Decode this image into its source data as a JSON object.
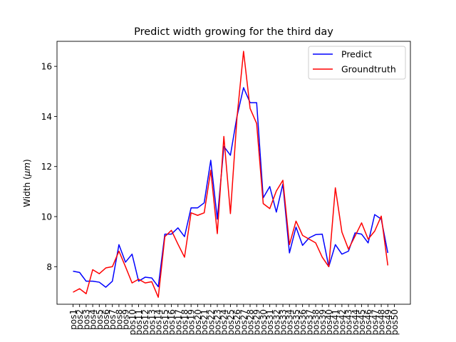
{
  "chart_data": {
    "type": "line",
    "title": "Predict width growing for the third day",
    "ylabel_main": "Width (",
    "ylabel_unit": "μm",
    "ylabel_close": ")",
    "xlabel": "",
    "ylim": [
      6.5,
      17.0
    ],
    "yticks": [
      8,
      10,
      12,
      14,
      16
    ],
    "grid": false,
    "legend_position": "top-right",
    "categories": [
      "pos1",
      "pos2",
      "pos3",
      "pos4",
      "pos5",
      "pos6",
      "pos7",
      "pos8",
      "pos9",
      "pos10",
      "pos11",
      "pos12",
      "pos13",
      "pos14",
      "pos15",
      "pos16",
      "pos17",
      "pos18",
      "pos19",
      "pos20",
      "pos21",
      "pos22",
      "pos23",
      "pos24",
      "pos25",
      "pos26",
      "pos27",
      "pos28",
      "pos29",
      "pos30",
      "pos31",
      "pos32",
      "pos33",
      "pos34",
      "pos35",
      "pos36",
      "pos37",
      "pos38",
      "pos39",
      "pos40",
      "pos41",
      "pos42",
      "pos43",
      "pos44",
      "pos45",
      "pos46",
      "pos47",
      "pos48",
      "pos49",
      "pos50"
    ],
    "series": [
      {
        "name": "Predict",
        "color": "#0000ff",
        "values": [
          7.82,
          7.77,
          7.42,
          7.42,
          7.38,
          7.18,
          7.42,
          8.88,
          8.18,
          8.5,
          7.42,
          7.58,
          7.55,
          7.2,
          9.3,
          9.3,
          9.55,
          9.2,
          10.35,
          10.35,
          10.55,
          12.25,
          9.9,
          12.8,
          12.45,
          14.0,
          15.15,
          14.55,
          14.55,
          10.75,
          11.2,
          10.18,
          11.3,
          8.55,
          9.58,
          8.85,
          9.15,
          9.28,
          9.3,
          8.0,
          8.88,
          8.5,
          8.62,
          9.35,
          9.3,
          8.95,
          10.08,
          9.9,
          8.55,
          null
        ]
      },
      {
        "name": "Groundtruth",
        "color": "#ff0000",
        "values": [
          6.98,
          7.12,
          6.92,
          7.88,
          7.72,
          7.95,
          8.0,
          8.62,
          8.0,
          7.35,
          7.5,
          7.35,
          7.4,
          6.78,
          9.2,
          9.45,
          8.9,
          8.38,
          10.15,
          10.05,
          10.15,
          11.85,
          9.32,
          13.2,
          10.12,
          13.95,
          16.6,
          14.32,
          13.72,
          10.52,
          10.32,
          11.02,
          11.45,
          8.88,
          9.82,
          9.25,
          9.1,
          8.95,
          8.38,
          8.0,
          11.15,
          9.38,
          8.7,
          9.22,
          9.75,
          9.1,
          9.42,
          10.02,
          8.05,
          null
        ]
      }
    ]
  }
}
